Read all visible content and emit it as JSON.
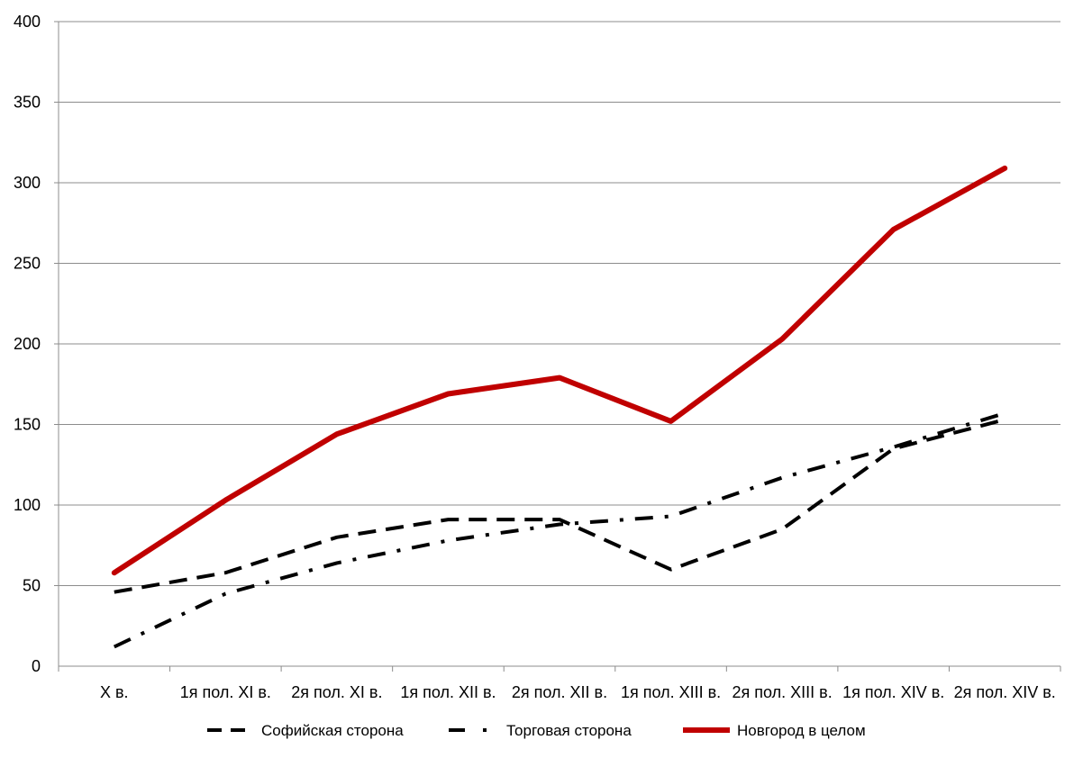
{
  "chart_data": {
    "type": "line",
    "title": "",
    "xlabel": "",
    "ylabel": "",
    "categories": [
      "X в.",
      "1я пол. XI в.",
      "2я пол. XI в.",
      "1я пол. XII в.",
      "2я пол. XII в.",
      "1я пол. XIII в.",
      "2я пол. XIII в.",
      "1я пол. XIV в.",
      "2я пол. XIV в."
    ],
    "ylim": [
      0,
      400
    ],
    "yticks": [
      "0",
      "50",
      "100",
      "150",
      "200",
      "250",
      "300",
      "350",
      "400"
    ],
    "grid": true,
    "legend_position": "bottom",
    "series": [
      {
        "name": "Софийская сторона",
        "style": "dashed",
        "color": "#000000",
        "values": [
          46,
          58,
          80,
          91,
          91,
          60,
          85,
          135,
          153
        ]
      },
      {
        "name": "Торговая сторона",
        "style": "dash-dot",
        "color": "#000000",
        "values": [
          12,
          45,
          64,
          78,
          88,
          93,
          117,
          136,
          157
        ]
      },
      {
        "name": "Новгород в целом",
        "style": "solid",
        "color": "#C00000",
        "values": [
          58,
          103,
          144,
          169,
          179,
          152,
          203,
          271,
          309
        ]
      }
    ]
  }
}
